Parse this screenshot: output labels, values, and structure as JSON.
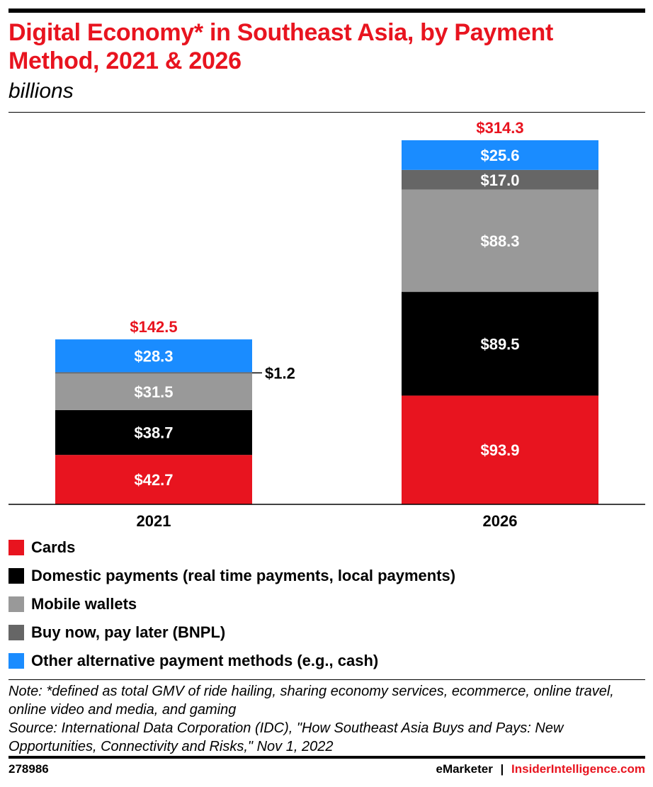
{
  "title": "Digital Economy* in Southeast Asia, by Payment Method, 2021 & 2026",
  "subtitle": "billions",
  "chart_data": {
    "type": "bar",
    "stacked": true,
    "categories": [
      "2021",
      "2026"
    ],
    "series": [
      {
        "name": "Cards",
        "values": [
          42.7,
          93.9
        ],
        "labels": [
          "$42.7",
          "$93.9"
        ],
        "color": "#e8141f"
      },
      {
        "name": "Domestic payments (real time payments, local payments)",
        "values": [
          38.7,
          89.5
        ],
        "labels": [
          "$38.7",
          "$89.5"
        ],
        "color": "#000000"
      },
      {
        "name": "Mobile wallets",
        "values": [
          31.5,
          88.3
        ],
        "labels": [
          "$31.5",
          "$88.3"
        ],
        "color": "#999999"
      },
      {
        "name": "Buy now, pay later (BNPL)",
        "values": [
          1.2,
          17.0
        ],
        "labels": [
          "$1.2",
          "$17.0"
        ],
        "color": "#666666"
      },
      {
        "name": "Other alternative payment methods (e.g., cash)",
        "values": [
          28.3,
          25.6
        ],
        "labels": [
          "$28.3",
          "$25.6"
        ],
        "color": "#1a8cff"
      }
    ],
    "totals": [
      142.5,
      314.3
    ],
    "total_labels": [
      "$142.5",
      "$314.3"
    ],
    "total_color": "#e8141f",
    "legend": "bottom",
    "grid": false
  },
  "notes": {
    "note": "Note: *defined as total GMV of ride hailing, sharing economy services, ecommerce, online travel, online video and media, and gaming",
    "source": "Source: International Data Corporation (IDC), \"How Southeast Asia Buys and Pays: New Opportunities, Connectivity and Risks,\" Nov 1, 2022"
  },
  "footer": {
    "chart_id": "278986",
    "brand1": "eMarketer",
    "separator": "|",
    "brand2": "InsiderIntelligence.com"
  }
}
